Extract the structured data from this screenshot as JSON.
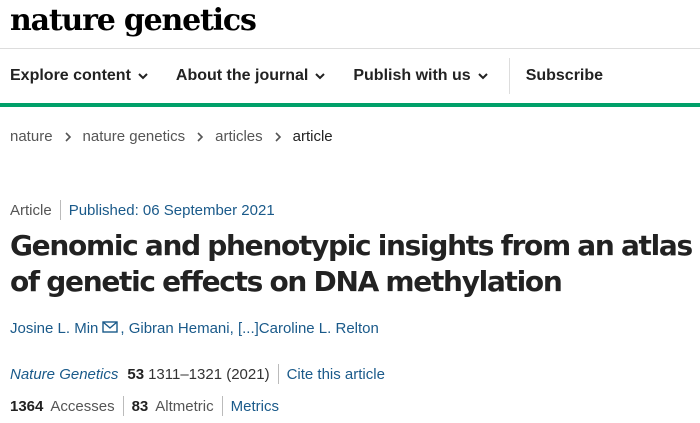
{
  "header": {
    "logo_text": "nature genetics"
  },
  "nav": {
    "items": [
      {
        "label": "Explore content",
        "has_dropdown": true
      },
      {
        "label": "About the journal",
        "has_dropdown": true
      },
      {
        "label": "Publish with us",
        "has_dropdown": true
      },
      {
        "label": "Subscribe",
        "has_dropdown": false
      }
    ],
    "accent_color": "#00a069"
  },
  "breadcrumb": {
    "items": [
      "nature",
      "nature genetics",
      "articles",
      "article"
    ]
  },
  "article": {
    "type": "Article",
    "published": "Published: 06 September 2021",
    "title": "Genomic and phenotypic insights from an atlas of genetic effects on DNA methylation",
    "authors": {
      "first": "Josine L. Min",
      "second": "Gibran Hemani,",
      "ellipsis": "[...]",
      "last": "Caroline L. Relton"
    },
    "citation": {
      "journal": "Nature Genetics",
      "volume": "53",
      "pages": "1311–1321 (2021)",
      "cite_label": "Cite this article"
    },
    "metrics": {
      "accesses_value": "1364",
      "accesses_label": "Accesses",
      "altmetric_value": "83",
      "altmetric_label": "Altmetric",
      "metrics_link": "Metrics"
    }
  },
  "colors": {
    "link": "#1a5a8a",
    "text": "#222222"
  }
}
